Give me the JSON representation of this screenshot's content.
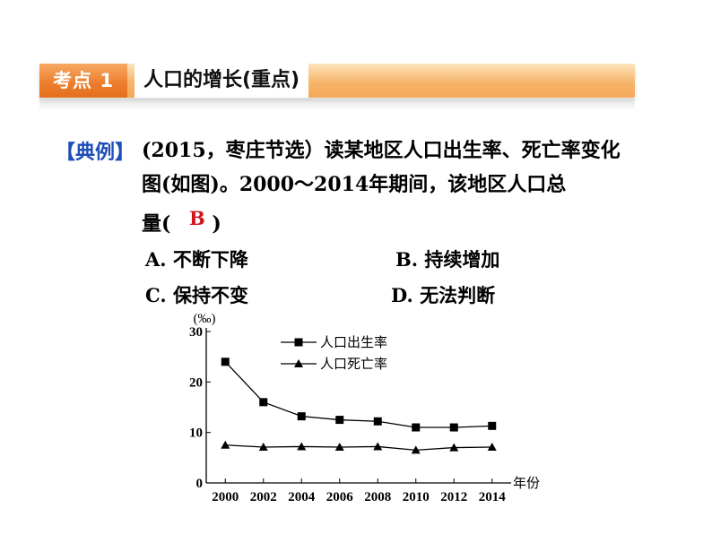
{
  "header": {
    "tag": "考点 1",
    "title": "人口的增长(重点)"
  },
  "question": {
    "label": "【典例】",
    "text": "(2015，枣庄节选）读某地区人口出生率、死亡率变化图(如图)。2000～2014年期间，该地区人口总",
    "answer_prefix": "量(",
    "answer": "B",
    "answer_suffix": ")",
    "options": {
      "a": "A.  不断下降",
      "b": "B.  持续增加",
      "c": "C.  保持不变",
      "d": "D.  无法判断"
    }
  },
  "colors": {
    "tag_bg": "#ec7d2c",
    "bar_bg": "#f6b56a",
    "label_blue": "#1d4fb8",
    "answer_red": "#d4141a"
  },
  "chart_data": {
    "type": "line",
    "y_unit": "(‰)",
    "x_unit": "年份",
    "x": [
      2000,
      2002,
      2004,
      2006,
      2008,
      2010,
      2012,
      2014
    ],
    "x_ticks": [
      "2000",
      "2002",
      "2004",
      "2006",
      "2008",
      "2010",
      "2012",
      "2014"
    ],
    "y_ticks": [
      "0",
      "10",
      "20",
      "30"
    ],
    "ylim": [
      0,
      30
    ],
    "xlim": [
      1999,
      2015
    ],
    "grid": false,
    "legend_position": "top",
    "series": [
      {
        "name": "人口出生率",
        "marker": "square",
        "values": [
          24,
          16,
          13.2,
          12.5,
          12.2,
          11,
          11,
          11.3
        ]
      },
      {
        "name": "人口死亡率",
        "marker": "triangle",
        "values": [
          7.5,
          7.1,
          7.2,
          7.1,
          7.2,
          6.5,
          7.0,
          7.1
        ]
      }
    ]
  }
}
